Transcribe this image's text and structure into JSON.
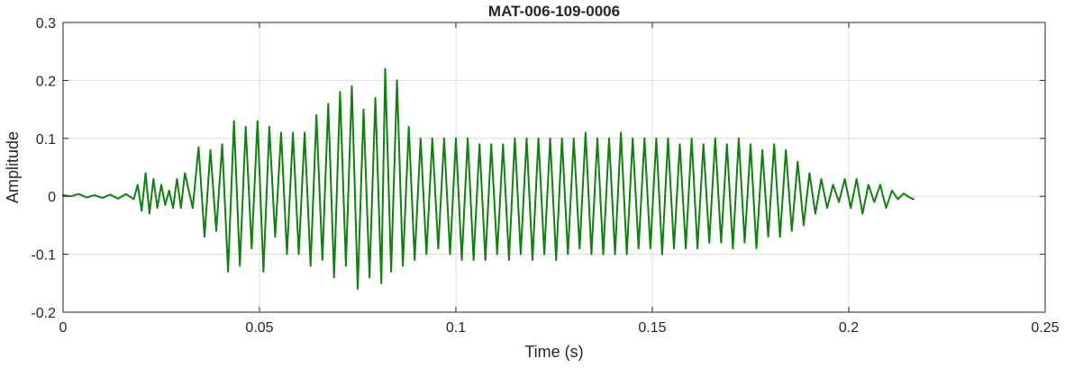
{
  "chart_data": {
    "type": "line",
    "title": "MAT-006-109-0006",
    "xlabel": "Time (s)",
    "ylabel": "Amplitude",
    "xlim": [
      0,
      0.25
    ],
    "ylim": [
      -0.2,
      0.3
    ],
    "xticks": [
      0,
      0.05,
      0.1,
      0.15,
      0.2,
      0.25
    ],
    "xtick_labels": [
      "0",
      "0.05",
      "0.1",
      "0.15",
      "0.2",
      "0.25"
    ],
    "yticks": [
      -0.2,
      -0.1,
      0,
      0.1,
      0.2,
      0.3
    ],
    "ytick_labels": [
      "-0.2",
      "-0.1",
      "0",
      "0.1",
      "0.2",
      "0.3"
    ],
    "grid": true,
    "series": [
      {
        "color": "#118011",
        "x": [
          0,
          0.002,
          0.004,
          0.006,
          0.008,
          0.01,
          0.012,
          0.014,
          0.016,
          0.018,
          0.019,
          0.02,
          0.021,
          0.022,
          0.023,
          0.024,
          0.025,
          0.026,
          0.027,
          0.028,
          0.029,
          0.03,
          0.031,
          0.032,
          0.033,
          0.0345,
          0.036,
          0.0375,
          0.039,
          0.0405,
          0.042,
          0.0435,
          0.045,
          0.0465,
          0.048,
          0.0495,
          0.051,
          0.0525,
          0.054,
          0.0555,
          0.057,
          0.0585,
          0.06,
          0.0615,
          0.063,
          0.0645,
          0.066,
          0.0675,
          0.069,
          0.0705,
          0.072,
          0.0735,
          0.075,
          0.0765,
          0.078,
          0.0795,
          0.081,
          0.082,
          0.0835,
          0.085,
          0.0865,
          0.088,
          0.0895,
          0.091,
          0.0925,
          0.094,
          0.0955,
          0.097,
          0.0985,
          0.1,
          0.1015,
          0.103,
          0.1045,
          0.106,
          0.1075,
          0.109,
          0.1105,
          0.112,
          0.1135,
          0.115,
          0.1165,
          0.118,
          0.1195,
          0.121,
          0.1225,
          0.124,
          0.1255,
          0.127,
          0.1285,
          0.13,
          0.1315,
          0.133,
          0.1345,
          0.136,
          0.1375,
          0.139,
          0.1405,
          0.142,
          0.1435,
          0.145,
          0.1465,
          0.148,
          0.1495,
          0.151,
          0.1525,
          0.154,
          0.1555,
          0.157,
          0.1585,
          0.16,
          0.1615,
          0.163,
          0.1645,
          0.166,
          0.1675,
          0.169,
          0.1705,
          0.172,
          0.1735,
          0.175,
          0.1765,
          0.178,
          0.1795,
          0.181,
          0.1825,
          0.184,
          0.1855,
          0.187,
          0.1885,
          0.19,
          0.1915,
          0.193,
          0.1945,
          0.196,
          0.1975,
          0.199,
          0.2005,
          0.202,
          0.2035,
          0.205,
          0.2065,
          0.208,
          0.2095,
          0.211,
          0.2125,
          0.214,
          0.2155,
          0.2165
        ],
        "y": [
          0.002,
          0.0,
          0.004,
          -0.002,
          0.002,
          -0.003,
          0.003,
          -0.004,
          0.004,
          -0.005,
          0.02,
          -0.025,
          0.04,
          -0.03,
          0.03,
          -0.02,
          0.02,
          -0.015,
          0.01,
          -0.02,
          0.03,
          -0.02,
          0.04,
          0.01,
          -0.02,
          0.085,
          -0.07,
          0.08,
          -0.06,
          0.09,
          -0.13,
          0.13,
          -0.12,
          0.12,
          -0.09,
          0.13,
          -0.13,
          0.12,
          -0.07,
          0.11,
          -0.1,
          0.11,
          -0.1,
          0.11,
          -0.12,
          0.14,
          -0.11,
          0.16,
          -0.14,
          0.18,
          -0.12,
          0.19,
          -0.16,
          0.15,
          -0.14,
          0.17,
          -0.15,
          0.22,
          -0.13,
          0.2,
          -0.12,
          0.12,
          -0.11,
          0.1,
          -0.1,
          0.1,
          -0.09,
          0.1,
          -0.1,
          0.1,
          -0.11,
          0.1,
          -0.11,
          0.09,
          -0.11,
          0.09,
          -0.1,
          0.09,
          -0.11,
          0.1,
          -0.1,
          0.1,
          -0.11,
          0.1,
          -0.1,
          0.1,
          -0.11,
          0.1,
          -0.1,
          0.1,
          -0.09,
          0.11,
          -0.1,
          0.1,
          -0.1,
          0.1,
          -0.1,
          0.11,
          -0.1,
          0.1,
          -0.09,
          0.1,
          -0.09,
          0.1,
          -0.1,
          0.1,
          -0.09,
          0.09,
          -0.09,
          0.1,
          -0.09,
          0.09,
          -0.08,
          0.1,
          -0.08,
          0.09,
          -0.09,
          0.1,
          -0.08,
          0.09,
          -0.09,
          0.08,
          -0.07,
          0.09,
          -0.07,
          0.08,
          -0.06,
          0.06,
          -0.05,
          0.04,
          -0.03,
          0.03,
          -0.02,
          0.02,
          -0.01,
          0.03,
          -0.02,
          0.03,
          -0.03,
          0.02,
          -0.01,
          0.02,
          -0.02,
          0.01,
          -0.005,
          0.005,
          -0.002,
          -0.005
        ]
      }
    ]
  }
}
